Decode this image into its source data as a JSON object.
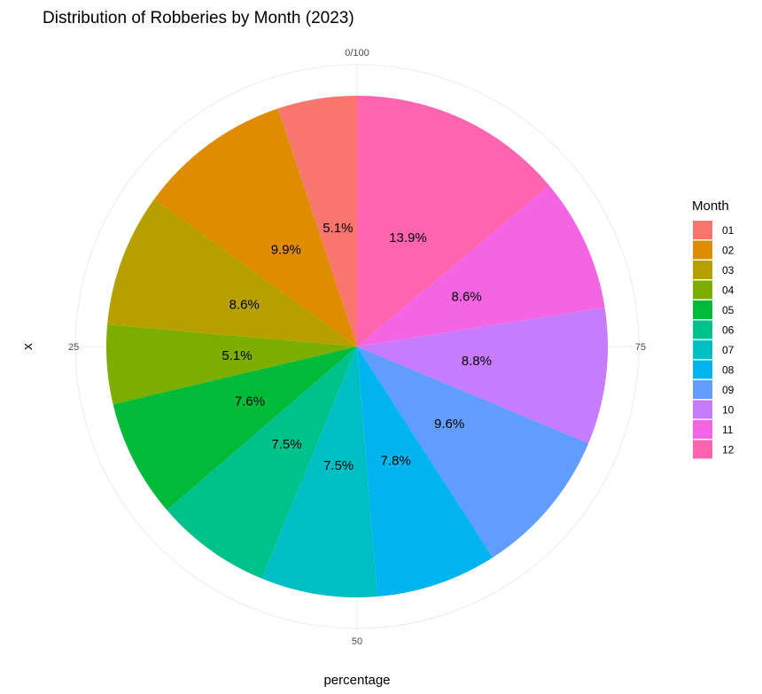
{
  "chart_data": {
    "type": "pie",
    "title": "Distribution of Robberies by Month (2023)",
    "xlabel": "percentage",
    "ylabel": "x",
    "angular_ticks": [
      {
        "value": 0,
        "label": "0/100"
      },
      {
        "value": 25,
        "label": "25"
      },
      {
        "value": 50,
        "label": "50"
      },
      {
        "value": 75,
        "label": "75"
      }
    ],
    "legend": {
      "title": "Month",
      "position": "right"
    },
    "grid": true,
    "slices": [
      {
        "label": "01",
        "value": 5.1,
        "text": "5.1%",
        "color": "#F8766D"
      },
      {
        "label": "02",
        "value": 9.9,
        "text": "9.9%",
        "color": "#DE8C00"
      },
      {
        "label": "03",
        "value": 8.6,
        "text": "8.6%",
        "color": "#B79F00"
      },
      {
        "label": "04",
        "value": 5.1,
        "text": "5.1%",
        "color": "#7CAE00"
      },
      {
        "label": "05",
        "value": 7.6,
        "text": "7.6%",
        "color": "#00BA38"
      },
      {
        "label": "06",
        "value": 7.5,
        "text": "7.5%",
        "color": "#00C08B"
      },
      {
        "label": "07",
        "value": 7.5,
        "text": "7.5%",
        "color": "#00BFC4"
      },
      {
        "label": "08",
        "value": 7.8,
        "text": "7.8%",
        "color": "#00B4F0"
      },
      {
        "label": "09",
        "value": 9.6,
        "text": "9.6%",
        "color": "#619CFF"
      },
      {
        "label": "10",
        "value": 8.8,
        "text": "8.8%",
        "color": "#C77CFF"
      },
      {
        "label": "11",
        "value": 8.6,
        "text": "8.6%",
        "color": "#F564E3"
      },
      {
        "label": "12",
        "value": 13.9,
        "text": "13.9%",
        "color": "#FF64B0"
      }
    ]
  }
}
